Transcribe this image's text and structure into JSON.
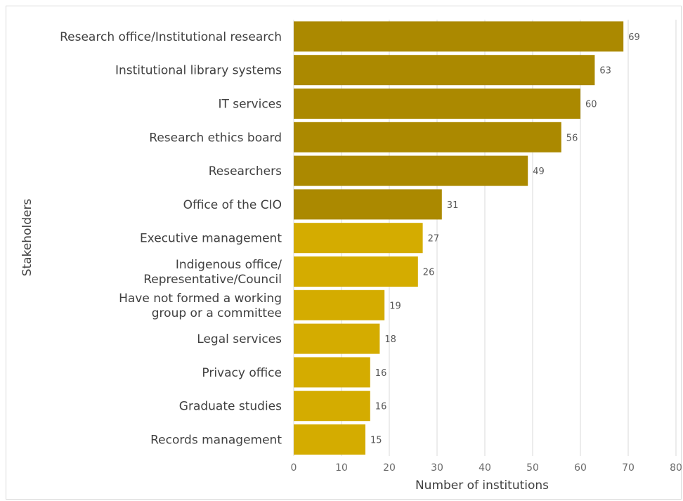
{
  "chart_data": {
    "type": "bar",
    "orientation": "horizontal",
    "categories": [
      "Research office/Institutional research",
      "Institutional library systems",
      "IT services",
      "Research ethics board",
      "Researchers",
      "Office of the CIO",
      "Executive management",
      "Indigenous office/\nRepresentative/Council",
      "Have not formed a working\ngroup or a committee",
      "Legal services",
      "Privacy office",
      "Graduate studies",
      "Records management"
    ],
    "values": [
      69,
      63,
      60,
      56,
      49,
      31,
      27,
      26,
      19,
      18,
      16,
      16,
      15
    ],
    "bar_colors": [
      "#ab8900",
      "#ab8900",
      "#ab8900",
      "#ab8900",
      "#ab8900",
      "#ab8900",
      "#d4ac00",
      "#d4ac00",
      "#d4ac00",
      "#d4ac00",
      "#d4ac00",
      "#d4ac00",
      "#d4ac00"
    ],
    "xlabel": "Number of institutions",
    "ylabel": "Stakeholders",
    "xlim": [
      0,
      80
    ],
    "xticks": [
      0,
      10,
      20,
      30,
      40,
      50,
      60,
      70,
      80
    ],
    "grid": true,
    "data_labels": true
  }
}
